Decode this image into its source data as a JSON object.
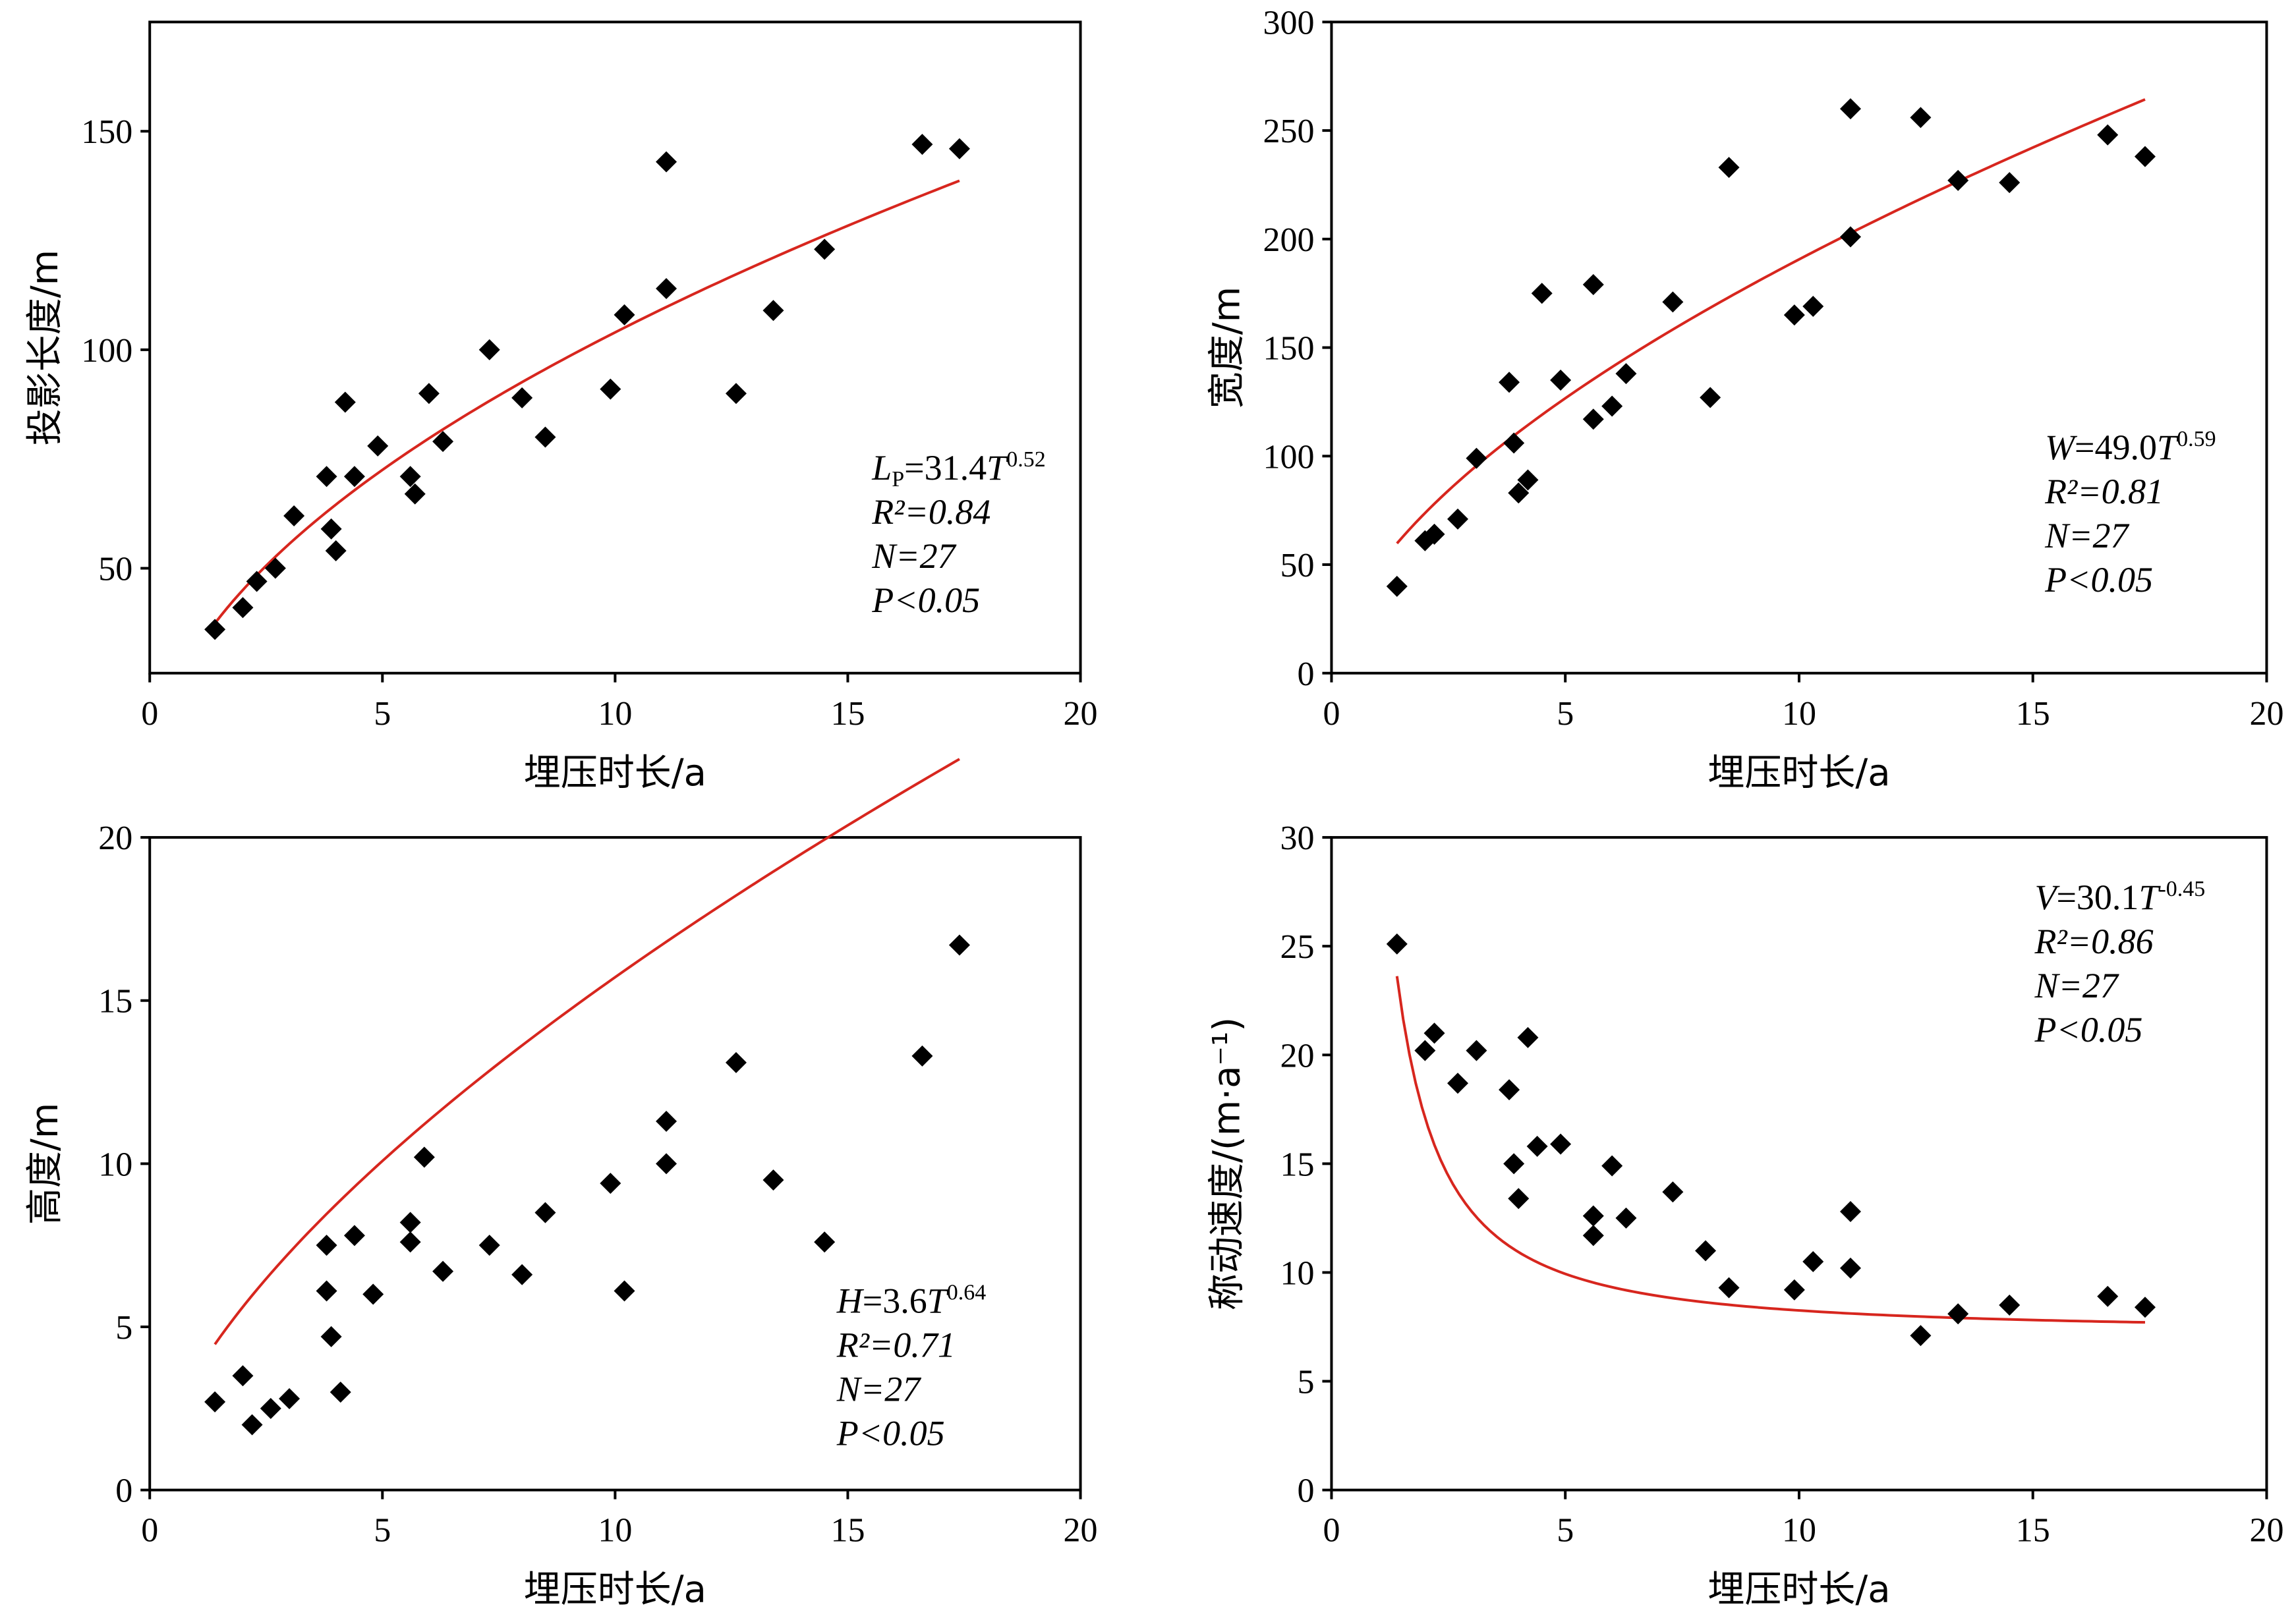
{
  "chart_data": [
    {
      "type": "scatter",
      "xlabel": "埋压时长/a",
      "ylabel": "投影长度/m",
      "xlim": [
        0,
        20
      ],
      "ylim": [
        26,
        175
      ],
      "xticks": [
        0,
        5,
        10,
        15,
        20
      ],
      "yticks": [
        50,
        100,
        150
      ],
      "grid": false,
      "series": [
        {
          "points": [
            [
              1.4,
              36
            ],
            [
              2.0,
              41
            ],
            [
              2.3,
              47
            ],
            [
              2.7,
              50
            ],
            [
              3.1,
              62
            ],
            [
              3.8,
              71
            ],
            [
              3.9,
              59
            ],
            [
              4.0,
              54
            ],
            [
              4.2,
              88
            ],
            [
              4.4,
              71
            ],
            [
              4.9,
              78
            ],
            [
              5.6,
              71
            ],
            [
              5.7,
              67
            ],
            [
              6.0,
              90
            ],
            [
              6.3,
              79
            ],
            [
              7.3,
              100
            ],
            [
              8.0,
              89
            ],
            [
              8.5,
              80
            ],
            [
              9.9,
              91
            ],
            [
              10.2,
              108
            ],
            [
              11.1,
              114
            ],
            [
              11.1,
              143
            ],
            [
              12.6,
              90
            ],
            [
              13.4,
              109
            ],
            [
              14.5,
              123
            ],
            [
              16.6,
              147
            ],
            [
              17.4,
              146
            ]
          ]
        }
      ],
      "fit": {
        "a": 31.4,
        "b": 0.52,
        "xmin": 1.4,
        "xmax": 17.4,
        "color": "#d7261e"
      },
      "annotation": {
        "main": "=31.4",
        "main_var": "L",
        "main_sub": "P",
        "main_var2": "T",
        "main_exp": "0.52",
        "r2": "R²=0.84",
        "n": "N=27",
        "p": "P<0.05"
      }
    },
    {
      "type": "scatter",
      "xlabel": "埋压时长/a",
      "ylabel": "宽度/m",
      "xlim": [
        0,
        20
      ],
      "ylim": [
        0,
        300
      ],
      "xticks": [
        0,
        5,
        10,
        15,
        20
      ],
      "yticks": [
        0,
        50,
        100,
        150,
        200,
        250,
        300
      ],
      "grid": false,
      "series": [
        {
          "points": [
            [
              1.4,
              40
            ],
            [
              2.0,
              61
            ],
            [
              2.2,
              64
            ],
            [
              2.7,
              71
            ],
            [
              3.1,
              99
            ],
            [
              3.8,
              134
            ],
            [
              3.9,
              106
            ],
            [
              4.0,
              83
            ],
            [
              4.2,
              89
            ],
            [
              4.5,
              175
            ],
            [
              4.9,
              135
            ],
            [
              5.6,
              179
            ],
            [
              5.6,
              117
            ],
            [
              6.0,
              123
            ],
            [
              6.3,
              138
            ],
            [
              7.3,
              171
            ],
            [
              8.1,
              127
            ],
            [
              8.5,
              233
            ],
            [
              9.9,
              165
            ],
            [
              10.3,
              169
            ],
            [
              11.1,
              260
            ],
            [
              11.1,
              201
            ],
            [
              12.6,
              256
            ],
            [
              13.4,
              227
            ],
            [
              14.5,
              226
            ],
            [
              16.6,
              248
            ],
            [
              17.4,
              238
            ]
          ]
        }
      ],
      "fit": {
        "a": 49.0,
        "b": 0.59,
        "xmin": 1.4,
        "xmax": 17.4,
        "color": "#d7261e"
      },
      "annotation": {
        "main": "=49.0",
        "main_var": "W",
        "main_var2": "T",
        "main_exp": "0.59",
        "r2": "R²=0.81",
        "n": "N=27",
        "p": "P<0.05"
      }
    },
    {
      "type": "scatter",
      "xlabel": "埋压时长/a",
      "ylabel": "高度/m",
      "xlim": [
        0,
        20
      ],
      "ylim": [
        0,
        20
      ],
      "xticks": [
        0,
        5,
        10,
        15,
        20
      ],
      "yticks": [
        0,
        5,
        10,
        15,
        20
      ],
      "grid": false,
      "series": [
        {
          "points": [
            [
              1.4,
              2.7
            ],
            [
              2.0,
              3.5
            ],
            [
              2.2,
              2.0
            ],
            [
              2.6,
              2.5
            ],
            [
              3.0,
              2.8
            ],
            [
              3.8,
              7.5
            ],
            [
              3.8,
              6.1
            ],
            [
              3.9,
              4.7
            ],
            [
              4.1,
              3.0
            ],
            [
              4.4,
              7.8
            ],
            [
              4.8,
              6.0
            ],
            [
              5.6,
              8.2
            ],
            [
              5.6,
              7.6
            ],
            [
              5.9,
              10.2
            ],
            [
              6.3,
              6.7
            ],
            [
              7.3,
              7.5
            ],
            [
              8.0,
              6.6
            ],
            [
              8.5,
              8.5
            ],
            [
              9.9,
              9.4
            ],
            [
              10.2,
              6.1
            ],
            [
              11.1,
              11.3
            ],
            [
              11.1,
              10.0
            ],
            [
              12.6,
              13.1
            ],
            [
              13.4,
              9.5
            ],
            [
              14.5,
              7.6
            ],
            [
              16.6,
              13.3
            ],
            [
              17.4,
              16.7
            ]
          ]
        }
      ],
      "fit": {
        "a": 3.6,
        "b": 0.64,
        "xmin": 1.4,
        "xmax": 17.4,
        "color": "#d7261e"
      },
      "annotation": {
        "main": "=3.6",
        "main_var": "H",
        "main_var2": "T",
        "main_exp": "0.64",
        "r2": "R²=0.71",
        "n": "N=27",
        "p": "P<0.05"
      }
    },
    {
      "type": "scatter",
      "xlabel": "埋压时长/a",
      "ylabel": "称动速度/(m·a⁻¹)",
      "xlim": [
        0,
        20
      ],
      "ylim": [
        0,
        30
      ],
      "xticks": [
        0,
        5,
        10,
        15,
        20
      ],
      "yticks": [
        0,
        5,
        10,
        15,
        20,
        25,
        30
      ],
      "grid": false,
      "series": [
        {
          "points": [
            [
              1.4,
              25.1
            ],
            [
              2.0,
              20.2
            ],
            [
              2.2,
              21.0
            ],
            [
              2.7,
              18.7
            ],
            [
              3.1,
              20.2
            ],
            [
              3.8,
              18.4
            ],
            [
              3.9,
              15.0
            ],
            [
              4.0,
              13.4
            ],
            [
              4.2,
              20.8
            ],
            [
              4.4,
              15.8
            ],
            [
              4.9,
              15.9
            ],
            [
              5.6,
              12.6
            ],
            [
              5.6,
              11.7
            ],
            [
              6.0,
              14.9
            ],
            [
              6.3,
              12.5
            ],
            [
              7.3,
              13.7
            ],
            [
              8.0,
              11.0
            ],
            [
              8.5,
              9.3
            ],
            [
              9.9,
              9.2
            ],
            [
              10.3,
              10.5
            ],
            [
              11.1,
              12.8
            ],
            [
              11.1,
              10.2
            ],
            [
              12.6,
              7.1
            ],
            [
              13.4,
              8.1
            ],
            [
              14.5,
              8.5
            ],
            [
              16.6,
              8.9
            ],
            [
              17.4,
              8.4
            ]
          ]
        }
      ],
      "fit": {
        "type": "decay",
        "color": "#d7261e",
        "xmin": 1.4,
        "xmax": 17.4
      },
      "annotation": {
        "main": "=30.1",
        "main_var": "V",
        "main_var2": "T",
        "main_exp": "-0.45",
        "r2": "R²=0.86",
        "n": "N=27",
        "p": "P<0.05"
      }
    }
  ]
}
